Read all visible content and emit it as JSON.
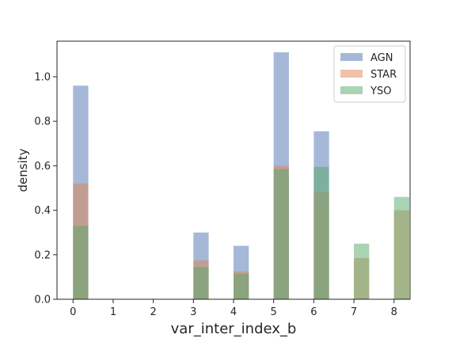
{
  "chart_data": {
    "type": "bar",
    "xlabel": "var_inter_index_b",
    "ylabel": "density",
    "xlim": [
      -0.4,
      8.4
    ],
    "ylim": [
      0,
      1.16
    ],
    "xticks": [
      "0",
      "1",
      "2",
      "3",
      "4",
      "5",
      "6",
      "7",
      "8"
    ],
    "yticks": [
      "0.0",
      "0.2",
      "0.4",
      "0.6",
      "0.8",
      "1.0"
    ],
    "bin_width": 0.38,
    "legend_position": "top-right",
    "series": [
      {
        "name": "AGN",
        "color": "#4c72b0",
        "bins": [
          {
            "x": 0,
            "value": 0.96
          },
          {
            "x": 3,
            "value": 0.3
          },
          {
            "x": 4,
            "value": 0.24
          },
          {
            "x": 5,
            "value": 1.11
          },
          {
            "x": 6,
            "value": 0.755
          }
        ]
      },
      {
        "name": "STAR",
        "color": "#dd8452",
        "bins": [
          {
            "x": 0,
            "value": 0.52
          },
          {
            "x": 3,
            "value": 0.175
          },
          {
            "x": 4,
            "value": 0.125
          },
          {
            "x": 5,
            "value": 0.6
          },
          {
            "x": 6,
            "value": 0.48
          },
          {
            "x": 7,
            "value": 0.185
          },
          {
            "x": 8,
            "value": 0.4
          }
        ]
      },
      {
        "name": "YSO",
        "color": "#55a868",
        "bins": [
          {
            "x": 0,
            "value": 0.33
          },
          {
            "x": 3,
            "value": 0.145
          },
          {
            "x": 4,
            "value": 0.115
          },
          {
            "x": 5,
            "value": 0.585
          },
          {
            "x": 6,
            "value": 0.595
          },
          {
            "x": 7,
            "value": 0.25
          },
          {
            "x": 8,
            "value": 0.46
          }
        ]
      }
    ]
  }
}
